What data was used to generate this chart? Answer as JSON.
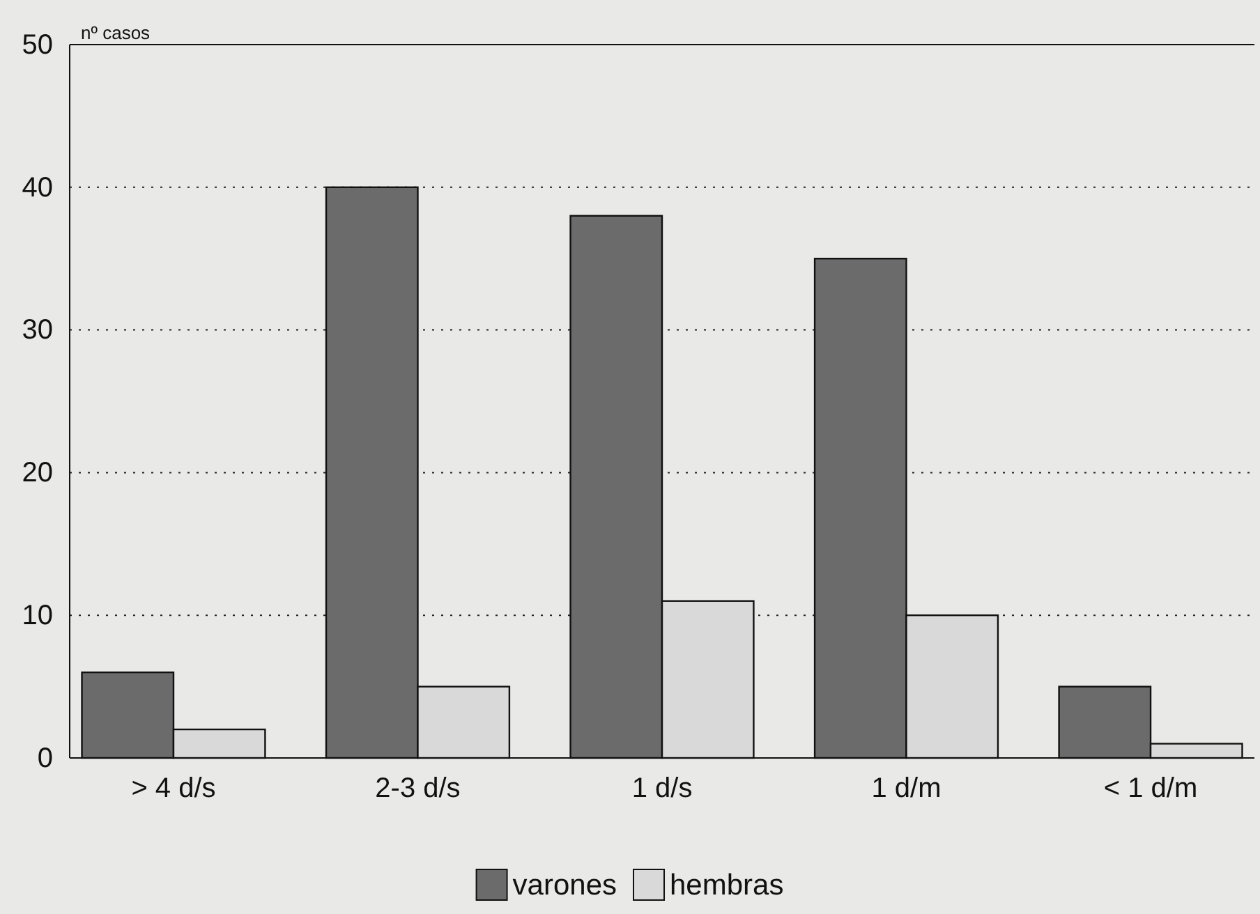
{
  "chart_data": {
    "type": "bar",
    "ylabel": "nº casos",
    "categories": [
      "> 4 d/s",
      "2-3 d/s",
      "1 d/s",
      "1 d/m",
      "< 1 d/m"
    ],
    "series": [
      {
        "name": "varones",
        "color": "#6b6b6b",
        "values": [
          6,
          40,
          38,
          35,
          5
        ]
      },
      {
        "name": "hembras",
        "color": "#d9d9d9",
        "values": [
          2,
          5,
          11,
          10,
          1
        ]
      }
    ],
    "ylim": [
      0,
      50
    ],
    "yticks": [
      0,
      10,
      20,
      30,
      40,
      50
    ],
    "grid": "y",
    "legend": "bottom"
  }
}
